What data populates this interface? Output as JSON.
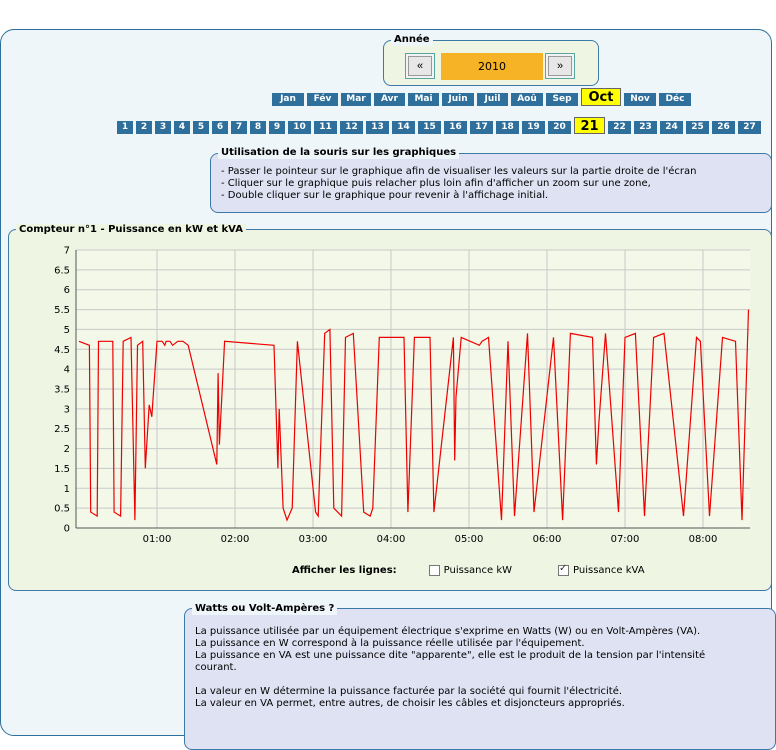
{
  "year_box": {
    "title": "Année",
    "prev_label": "«",
    "next_label": "»",
    "year": "2010"
  },
  "months": [
    "Jan",
    "Fév",
    "Mar",
    "Avr",
    "Mai",
    "Juin",
    "Juil",
    "Aoû",
    "Sep",
    "Oct",
    "Nov",
    "Déc"
  ],
  "selected_month_index": 9,
  "days": [
    "1",
    "2",
    "3",
    "4",
    "5",
    "6",
    "7",
    "8",
    "9",
    "10",
    "11",
    "12",
    "13",
    "14",
    "15",
    "16",
    "17",
    "18",
    "19",
    "20",
    "21",
    "22",
    "23",
    "24",
    "25",
    "26",
    "27"
  ],
  "selected_day_index": 20,
  "mouse_help": {
    "title": "Utilisation de la souris sur les graphiques",
    "lines": [
      "- Passer le pointeur sur le graphique afin de visualiser les valeurs sur la partie droite de l'écran",
      "- Cliquer sur le graphique puis relacher plus loin afin d'afficher un zoom sur une zone,",
      "- Double cliquer sur le graphique pour revenir à l'affichage initial."
    ]
  },
  "chart_panel": {
    "title": "Compteur n°1 - Puissance en kW et kVA",
    "show_lines_label": "Afficher les lignes:",
    "kw_label": "Puissance kW",
    "kw_checked": false,
    "kva_label": "Puissance kVA",
    "kva_checked": true
  },
  "chart_data": {
    "type": "line",
    "title": "Compteur n°1 - Puissance en kW et kVA",
    "xlabel": "",
    "ylabel": "",
    "ylim": [
      0,
      7
    ],
    "yticks": [
      "0",
      "0.5",
      "1",
      "1.5",
      "2",
      "2.5",
      "3",
      "3.5",
      "4",
      "4.5",
      "5",
      "5.5",
      "6",
      "6.5",
      "7"
    ],
    "xticks": [
      "01:00",
      "02:00",
      "03:00",
      "04:00",
      "05:00",
      "06:00",
      "07:00",
      "08:00"
    ],
    "grid": true,
    "line_color": "#ee0000",
    "series": [
      {
        "x": [
          "00:00",
          "00:08",
          "00:09",
          "00:14",
          "00:15",
          "00:26",
          "00:27",
          "00:32",
          "00:34",
          "00:40",
          "00:43",
          "00:45",
          "00:49",
          "00:51",
          "00:54",
          "00:56",
          "01:00",
          "01:04",
          "01:06",
          "01:07",
          "01:10",
          "01:12",
          "01:16",
          "01:20",
          "01:24",
          "01:46",
          "01:47",
          "01:48",
          "01:52",
          "02:30",
          "02:33",
          "02:34",
          "02:37",
          "02:40",
          "02:44",
          "02:48",
          "03:02",
          "03:04",
          "03:09",
          "03:13",
          "03:16",
          "03:22",
          "03:25",
          "03:31",
          "03:39",
          "03:44",
          "03:46",
          "03:51",
          "04:10",
          "04:13",
          "04:18",
          "04:20",
          "04:30",
          "04:33",
          "04:48",
          "04:49",
          "04:50",
          "04:54",
          "05:08",
          "05:10",
          "05:15",
          "05:25",
          "05:30",
          "05:35",
          "05:45",
          "05:50",
          "06:05",
          "06:12",
          "06:18",
          "06:35",
          "06:38",
          "06:40",
          "06:45",
          "06:55",
          "07:00",
          "07:08",
          "07:15",
          "07:22",
          "07:30",
          "07:45",
          "07:55",
          "07:58",
          "08:05",
          "08:15",
          "08:25",
          "08:30",
          "08:35"
        ],
        "values": [
          4.7,
          4.6,
          0.4,
          0.3,
          4.7,
          4.7,
          0.4,
          0.3,
          4.7,
          4.8,
          0.2,
          4.6,
          4.7,
          1.5,
          3.1,
          2.8,
          4.7,
          4.7,
          4.6,
          4.7,
          4.7,
          4.6,
          4.7,
          4.7,
          4.6,
          1.6,
          3.9,
          2.1,
          4.7,
          4.6,
          1.5,
          3.0,
          0.5,
          0.2,
          0.5,
          4.7,
          0.4,
          0.3,
          4.9,
          5.0,
          0.5,
          0.3,
          4.8,
          4.9,
          0.4,
          0.3,
          0.5,
          4.8,
          4.8,
          0.4,
          4.8,
          4.8,
          4.8,
          0.4,
          4.8,
          1.7,
          3.3,
          4.8,
          4.6,
          4.7,
          4.8,
          0.2,
          4.7,
          0.3,
          4.9,
          0.4,
          4.8,
          0.2,
          4.9,
          4.8,
          1.6,
          2.7,
          4.9,
          0.4,
          4.8,
          4.9,
          0.3,
          4.8,
          4.9,
          0.3,
          4.8,
          4.7,
          0.3,
          4.8,
          4.7,
          0.2,
          5.5
        ]
      }
    ]
  },
  "watts_box": {
    "title": "Watts ou Volt-Ampères ?",
    "lines": [
      "La puissance utilisée par un équipement électrique s'exprime en Watts (W) ou en Volt-Ampères (VA).",
      "La puissance en W correspond à la puissance réelle utilisée par l'équipement.",
      "La puissance en VA est une puissance dite \"apparente\", elle est le produit de la tension par l'intensité",
      "courant.",
      "",
      "La valeur en W détermine la puissance facturée par la société qui fournit l'électricité.",
      "La valeur en VA permet, entre autres, de choisir les câbles et disjoncteurs appropriés."
    ]
  }
}
